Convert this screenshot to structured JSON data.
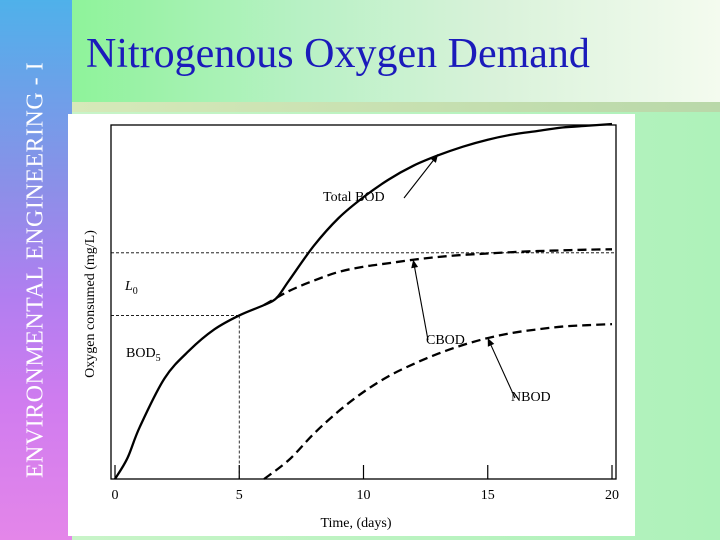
{
  "slide": {
    "title": "Nitrogenous Oxygen Demand",
    "side_label": "ENVIRONMENTAL ENGINEERING - I",
    "colors": {
      "title_text": "#1b1bbb",
      "side_band_top": "#4fb1ea",
      "side_band_bottom": "#e486e9",
      "title_band": "#8ef39a",
      "content_band": "#aef2ba"
    }
  },
  "chart_data": {
    "type": "line",
    "xlabel": "Time, (days)",
    "ylabel": "Oxygen consumed (mg/L)",
    "xticks": [
      0,
      5,
      10,
      15,
      20
    ],
    "xlim": [
      0,
      20
    ],
    "ylim": [
      0,
      10
    ],
    "grid": false,
    "series": [
      {
        "name": "Total BOD",
        "style": "solid",
        "x": [
          0,
          0.5,
          1,
          2,
          3,
          4,
          5,
          6,
          6.5,
          7,
          8,
          9,
          10,
          11,
          12,
          13,
          14,
          15,
          16,
          17,
          18,
          19,
          20
        ],
        "y": [
          0,
          0.6,
          1.5,
          2.9,
          3.7,
          4.3,
          4.7,
          5.0,
          5.2,
          5.7,
          6.7,
          7.5,
          8.1,
          8.6,
          9.0,
          9.3,
          9.55,
          9.75,
          9.9,
          10.0,
          10.1,
          10.15,
          10.2
        ]
      },
      {
        "name": "CBOD",
        "style": "dashed",
        "x": [
          6,
          7,
          8,
          9,
          10,
          11,
          12,
          13,
          14,
          15,
          16,
          17,
          18,
          19,
          20
        ],
        "y": [
          5.0,
          5.4,
          5.7,
          5.95,
          6.1,
          6.2,
          6.3,
          6.38,
          6.44,
          6.48,
          6.52,
          6.55,
          6.57,
          6.59,
          6.6
        ]
      },
      {
        "name": "NBOD",
        "style": "dashed",
        "x": [
          6,
          7,
          8,
          9,
          10,
          11,
          12,
          13,
          14,
          15,
          16,
          17,
          18,
          19,
          20
        ],
        "y": [
          0,
          0.55,
          1.3,
          1.95,
          2.5,
          2.95,
          3.3,
          3.6,
          3.85,
          4.05,
          4.2,
          4.3,
          4.38,
          4.42,
          4.45
        ]
      }
    ],
    "reference_lines": [
      {
        "label": "L",
        "subscript": "0",
        "y": 6.5
      },
      {
        "label": "BOD",
        "subscript": "5",
        "x": 5,
        "y": 4.7
      }
    ],
    "annotations": [
      {
        "text": "Total BOD",
        "points_to_series": "Total BOD",
        "x": 13,
        "y": 9.3
      },
      {
        "text": "CBOD",
        "points_to_series": "CBOD",
        "x": 12,
        "y": 6.3
      },
      {
        "text": "NBOD",
        "points_to_series": "NBOD",
        "x": 15,
        "y": 4.05
      }
    ]
  }
}
